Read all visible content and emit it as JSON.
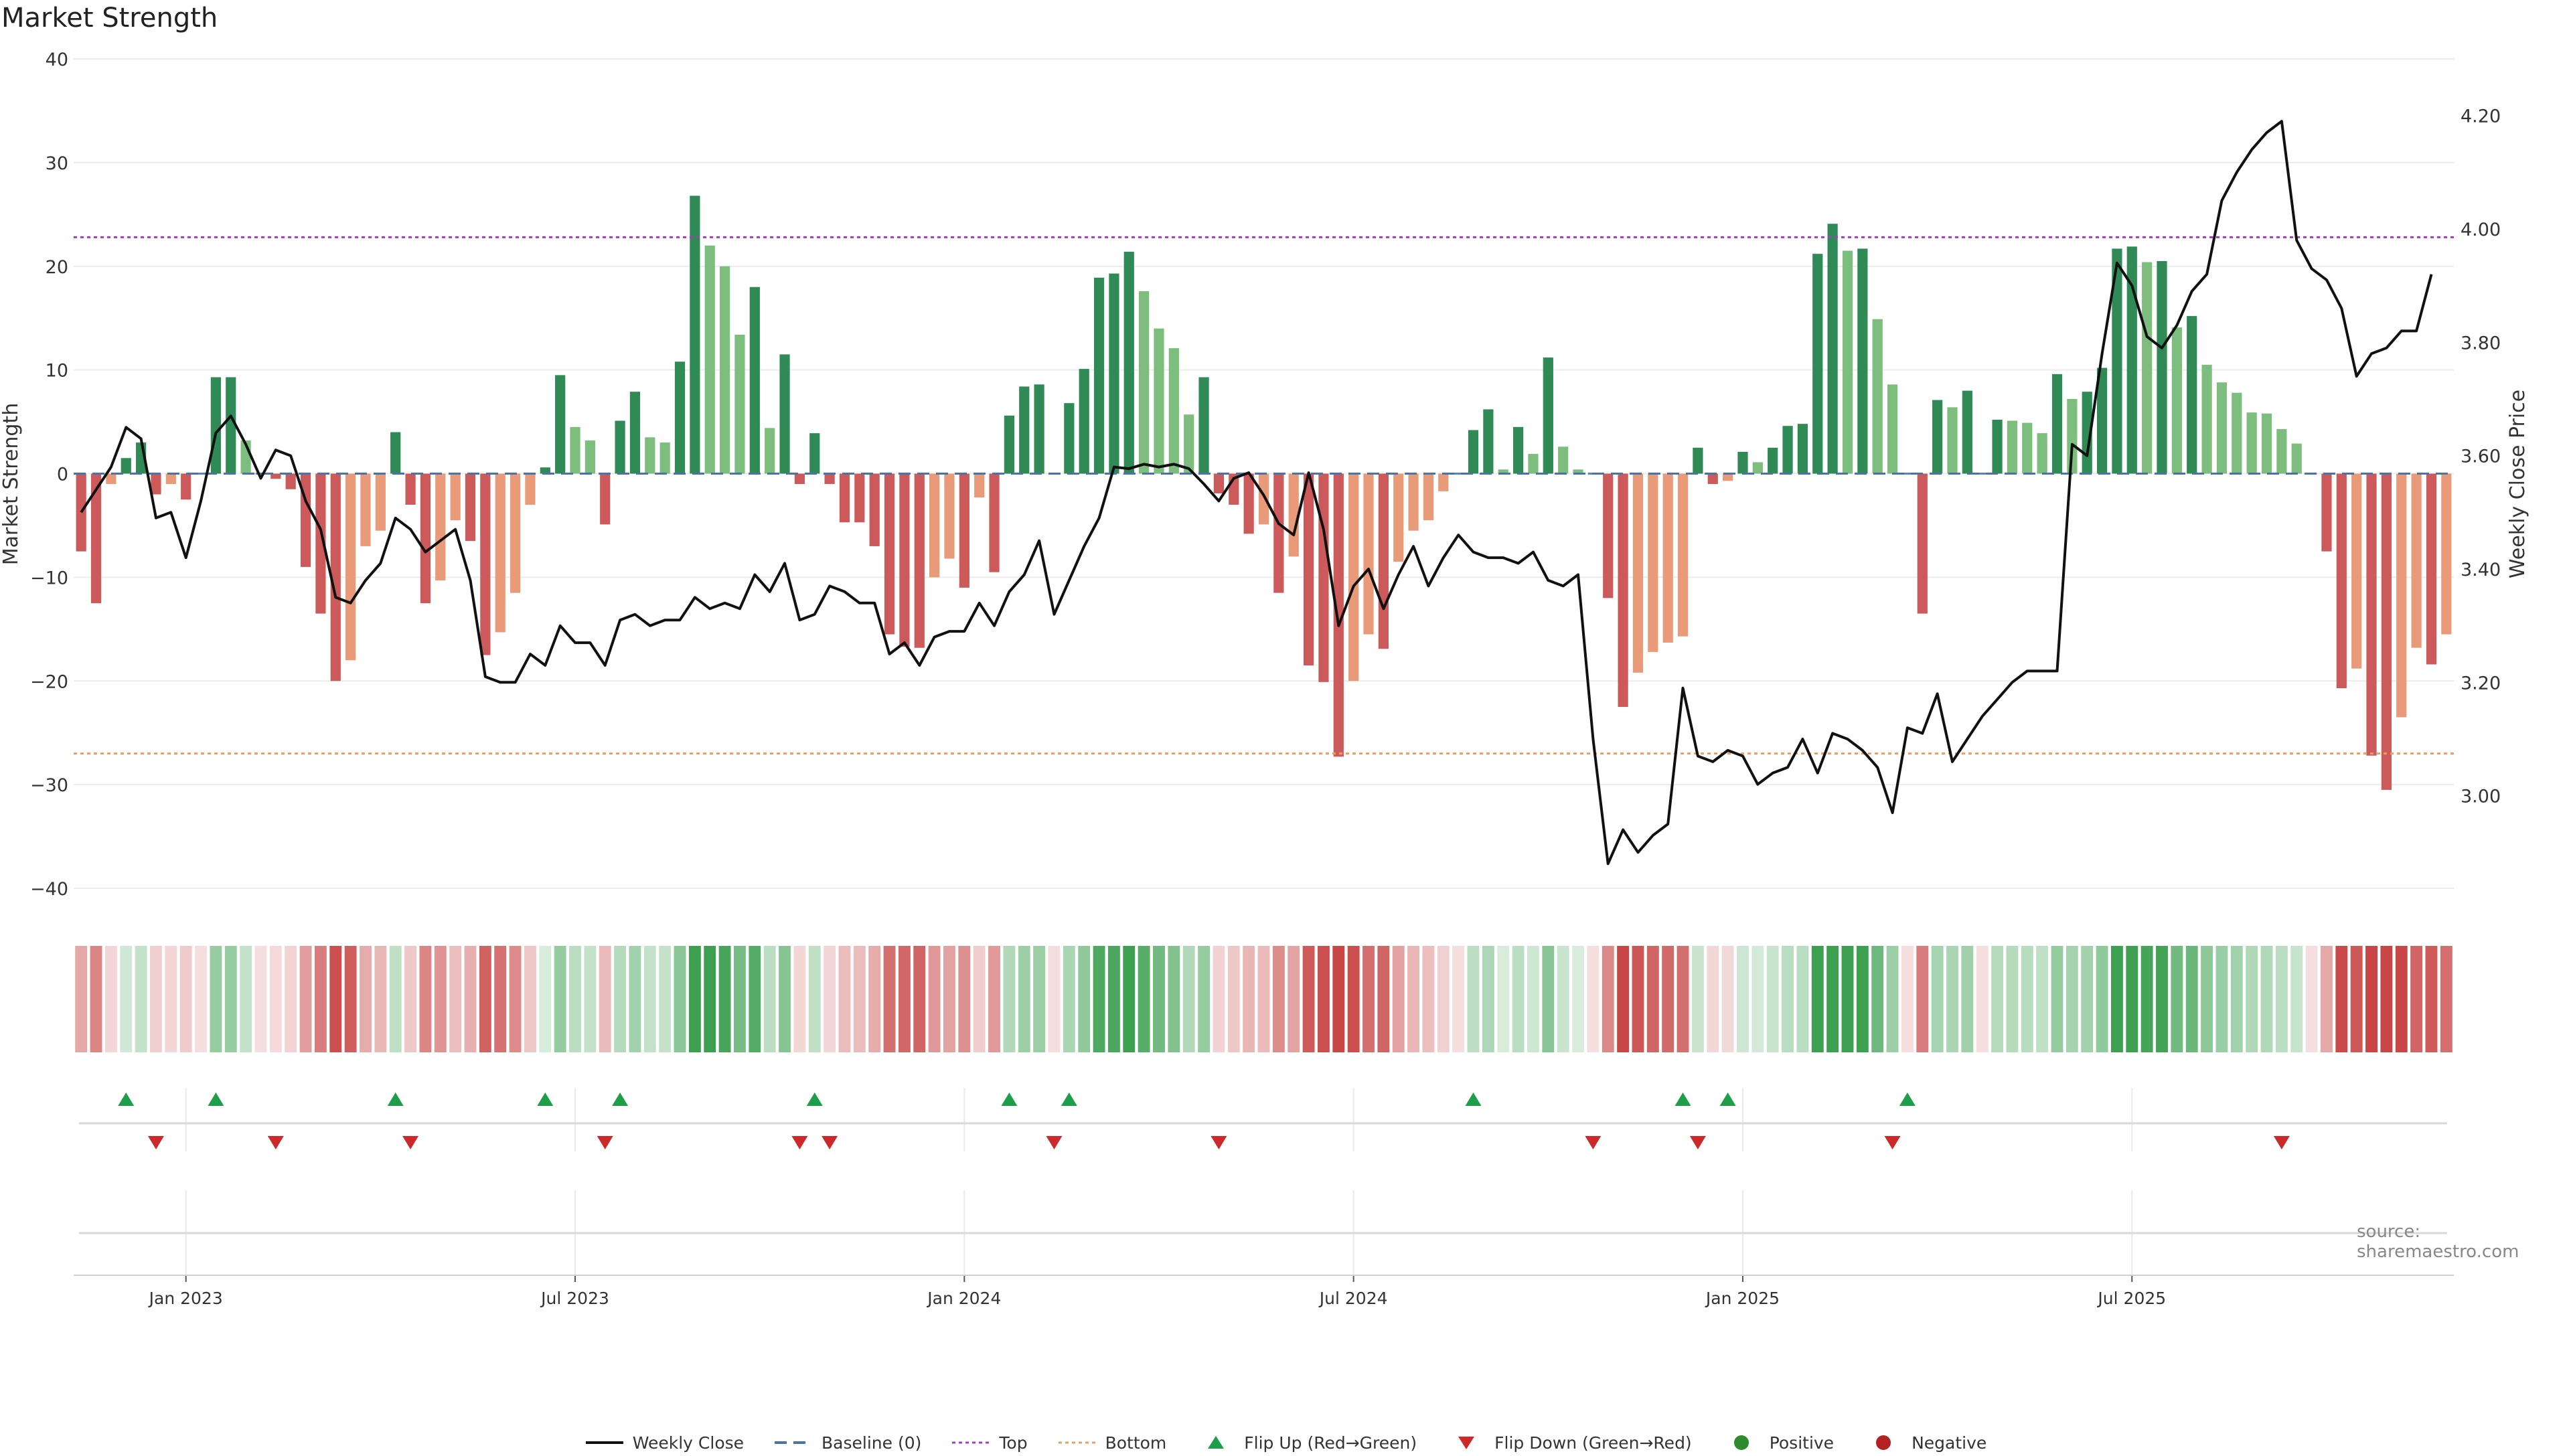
{
  "title": "Market Strength",
  "source": "source: sharemaestro.com",
  "legend": [
    {
      "label": "Weekly Close",
      "kind": "line",
      "color": "#111111"
    },
    {
      "label": "Baseline (0)",
      "kind": "dash",
      "color": "#4a74a6"
    },
    {
      "label": "Top",
      "kind": "dot",
      "color": "#a040c0"
    },
    {
      "label": "Bottom",
      "kind": "dot",
      "color": "#e8a060"
    },
    {
      "label": "Flip Up (Red→Green)",
      "kind": "tri-up",
      "color": "#1f9e4a"
    },
    {
      "label": "Flip Down (Green→Red)",
      "kind": "tri-down",
      "color": "#cc2a2a"
    },
    {
      "label": "Positive",
      "kind": "circle",
      "color": "#2e8b2e"
    },
    {
      "label": "Negative",
      "kind": "circle",
      "color": "#b22222"
    }
  ],
  "chart_data": {
    "type": "bar",
    "title": "Market Strength",
    "ylabel": "Market Strength",
    "y2label": "Weekly Close Price",
    "ylim": [
      -42,
      40
    ],
    "y2lim": [
      2.8,
      4.3
    ],
    "yticks": [
      40,
      30,
      20,
      10,
      0,
      -10,
      -20,
      -30,
      -40
    ],
    "yticklabels": [
      "40",
      "30",
      "20",
      "10",
      "0",
      "−10",
      "−20",
      "−30",
      "−40"
    ],
    "y2ticks": [
      4.2,
      4.0,
      3.8,
      3.6,
      3.4,
      3.2,
      3.0
    ],
    "y2ticklabels": [
      "4.20",
      "4.00",
      "3.80",
      "3.60",
      "3.40",
      "3.20",
      "3.00"
    ],
    "top_line": 22.8,
    "bottom_line": -27,
    "xticks": [
      {
        "week": 7,
        "label": "Jan 2023"
      },
      {
        "week": 33,
        "label": "Jul 2023"
      },
      {
        "week": 59,
        "label": "Jan 2024"
      },
      {
        "week": 85,
        "label": "Jul 2024"
      },
      {
        "week": 111,
        "label": "Jan 2025"
      },
      {
        "week": 137,
        "label": "Jul 2025"
      }
    ],
    "strength": [
      -7.5,
      -12.5,
      -1,
      1.5,
      3,
      -2,
      -1,
      -2.5,
      0,
      9.3,
      9.3,
      3.2,
      0,
      -0.5,
      -1.5,
      -9,
      -13.5,
      -20,
      -18,
      -7,
      -5.5,
      4,
      -3,
      -12.5,
      -10.3,
      -4.5,
      -6.5,
      -17.5,
      -15.3,
      -11.5,
      -3,
      0.6,
      9.5,
      4.5,
      3.2,
      -4.9,
      5.1,
      7.9,
      3.5,
      3,
      10.8,
      26.8,
      22,
      20,
      13.4,
      18,
      4.4,
      11.5,
      -1,
      3.9,
      -1,
      -4.7,
      -4.7,
      -7,
      -15.5,
      -16.7,
      -16.8,
      -10,
      -8.2,
      -11,
      -2.3,
      -9.5,
      5.6,
      8.4,
      8.6,
      0,
      6.8,
      10.1,
      18.9,
      19.3,
      21.4,
      17.6,
      14,
      12.1,
      5.7,
      9.3,
      -1.9,
      -3,
      -5.8,
      -4.9,
      -11.5,
      -8,
      -18.5,
      -20.1,
      -27.3,
      -20,
      -15.5,
      -16.9,
      -8.5,
      -5.5,
      -4.5,
      -1.7,
      0,
      4.2,
      6.2,
      0.4,
      4.5,
      1.9,
      11.2,
      2.6,
      0.4,
      0,
      -12,
      -22.5,
      -19.2,
      -17.2,
      -16.3,
      -15.7,
      2.5,
      -1,
      -0.7,
      2.1,
      1.1,
      2.5,
      4.6,
      4.8,
      21.2,
      24.1,
      21.5,
      21.7,
      14.9,
      8.6,
      0,
      -13.5,
      7.1,
      6.4,
      8,
      0,
      5.2,
      5.1,
      4.9,
      3.9,
      9.6,
      7.2,
      7.9,
      10.2,
      21.7,
      21.9,
      20.4,
      20.5,
      14.1,
      15.2,
      10.5,
      8.8,
      7.8,
      5.9,
      5.8,
      4.3,
      2.9,
      0,
      -7.5,
      -20.7,
      -18.8,
      -27.2,
      -30.5,
      -23.5,
      -16.8,
      -18.4,
      -15.5
    ],
    "weekly_close": [
      3.5,
      3.54,
      3.58,
      3.65,
      3.63,
      3.49,
      3.5,
      3.42,
      3.52,
      3.64,
      3.67,
      3.62,
      3.56,
      3.61,
      3.6,
      3.52,
      3.47,
      3.35,
      3.34,
      3.38,
      3.41,
      3.49,
      3.47,
      3.43,
      3.45,
      3.47,
      3.38,
      3.21,
      3.2,
      3.2,
      3.25,
      3.23,
      3.3,
      3.27,
      3.27,
      3.23,
      3.31,
      3.32,
      3.3,
      3.31,
      3.31,
      3.35,
      3.33,
      3.34,
      3.33,
      3.39,
      3.36,
      3.41,
      3.31,
      3.32,
      3.37,
      3.36,
      3.34,
      3.34,
      3.25,
      3.27,
      3.23,
      3.28,
      3.29,
      3.29,
      3.34,
      3.3,
      3.36,
      3.39,
      3.45,
      3.32,
      3.38,
      3.44,
      3.49,
      3.58,
      3.577,
      3.585,
      3.58,
      3.585,
      3.577,
      3.55,
      3.52,
      3.56,
      3.57,
      3.53,
      3.48,
      3.46,
      3.57,
      3.47,
      3.3,
      3.37,
      3.4,
      3.33,
      3.39,
      3.44,
      3.37,
      3.42,
      3.46,
      3.43,
      3.42,
      3.42,
      3.41,
      3.43,
      3.38,
      3.37,
      3.39,
      3.1,
      2.88,
      2.94,
      2.9,
      2.93,
      2.95,
      3.19,
      3.07,
      3.06,
      3.08,
      3.07,
      3.02,
      3.04,
      3.05,
      3.1,
      3.04,
      3.11,
      3.1,
      3.08,
      3.05,
      2.97,
      3.12,
      3.11,
      3.18,
      3.06,
      3.1,
      3.14,
      3.17,
      3.2,
      3.22,
      3.22,
      3.22,
      3.62,
      3.6,
      3.78,
      3.94,
      3.9,
      3.81,
      3.79,
      3.83,
      3.89,
      3.92,
      4.05,
      4.1,
      4.14,
      4.17,
      4.19,
      3.98,
      3.93,
      3.91,
      3.86,
      3.74,
      3.78,
      3.79,
      3.82,
      3.82,
      3.92
    ],
    "flip_up_weeks": [
      3,
      9,
      21,
      31,
      36,
      49,
      62,
      66,
      93,
      107,
      110,
      122
    ],
    "flip_down_weeks": [
      5,
      13,
      22,
      35,
      48,
      50,
      65,
      76,
      101,
      108,
      121,
      147
    ]
  }
}
